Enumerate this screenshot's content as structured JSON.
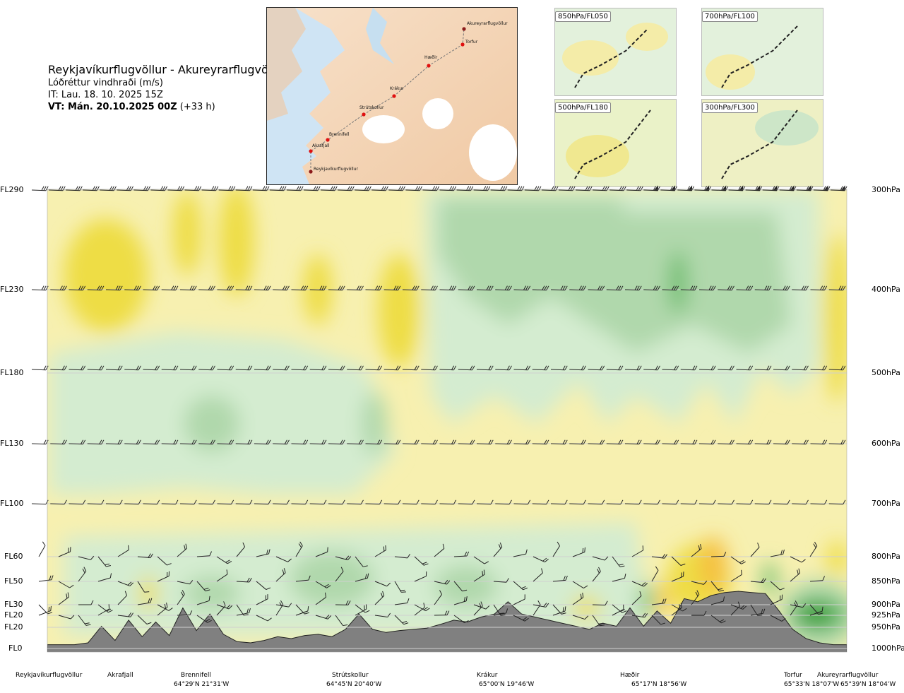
{
  "header": {
    "title": "Reykjavíkurflugvöllur - Akureyrarflugvöllur",
    "subtitle": "Lóðréttur vindhraði (m/s)",
    "it": "IT: Lau. 18. 10. 2025 15Z",
    "vt_bold": "VT: Mán. 20.10.2025 00Z",
    "vt_offset": "(+33 h)"
  },
  "map": {
    "places": [
      {
        "name": "Akureyrarflugvöllur"
      },
      {
        "name": "Torfur"
      },
      {
        "name": "Hæðir"
      },
      {
        "name": "Krákur"
      },
      {
        "name": "Strútskollur"
      },
      {
        "name": "Brennifell"
      },
      {
        "name": "Akrafjall"
      },
      {
        "name": "Reykjavíkurflugvöllur"
      }
    ]
  },
  "mini_maps": [
    {
      "label": "850hPa/FL050"
    },
    {
      "label": "700hPa/FL100"
    },
    {
      "label": "500hPa/FL180"
    },
    {
      "label": "300hPa/FL300"
    }
  ],
  "chart_data": {
    "type": "heatmap",
    "variable": "Lóðréttur vindhraði (m/s)",
    "flight_levels": [
      "FL290",
      "FL230",
      "FL180",
      "FL130",
      "FL100",
      "FL60",
      "FL50",
      "FL30",
      "FL20",
      "FL20",
      "FL0"
    ],
    "pressure_levels": [
      "300hPa",
      "400hPa",
      "500hPa",
      "600hPa",
      "700hPa",
      "800hPa",
      "850hPa",
      "900hPa",
      "925hPa",
      "950hPa",
      "1000hPa"
    ],
    "locations": [
      {
        "name": "Reykjavíkurflugvöllur",
        "coord": ""
      },
      {
        "name": "Akrafjall",
        "coord": ""
      },
      {
        "name": "Brennifell",
        "coord": "64°29'N 21°31'W"
      },
      {
        "name": "Strútskollur",
        "coord": "64°45'N 20°40'W"
      },
      {
        "name": "Krákur",
        "coord": "65°00'N 19°46'W"
      },
      {
        "name": "Hæðir",
        "coord": "65°17'N 18°56'W"
      },
      {
        "name": "Torfur",
        "coord": "65°33'N 18°07'W"
      },
      {
        "name": "Akureyrarflugvöllur",
        "coord": "65°39'N 18°04'W"
      }
    ],
    "terrain_profile": [
      0.05,
      0.05,
      0.05,
      0.08,
      0.35,
      0.12,
      0.45,
      0.18,
      0.42,
      0.2,
      0.65,
      0.28,
      0.55,
      0.22,
      0.1,
      0.08,
      0.12,
      0.18,
      0.15,
      0.2,
      0.22,
      0.18,
      0.3,
      0.55,
      0.3,
      0.25,
      0.28,
      0.3,
      0.32,
      0.38,
      0.45,
      0.42,
      0.5,
      0.55,
      0.75,
      0.55,
      0.5,
      0.45,
      0.4,
      0.35,
      0.3,
      0.4,
      0.35,
      0.65,
      0.35,
      0.6,
      0.4,
      0.8,
      0.75,
      0.85,
      0.9,
      0.92,
      0.9,
      0.88,
      0.6,
      0.3,
      0.15,
      0.08,
      0.05,
      0.05
    ],
    "colors": {
      "strong_up": "#f5c040",
      "up": "#eedd44",
      "weak_up": "#f7f0b0",
      "neutral": "#ffffff",
      "weak_down": "#d4ecd0",
      "down": "#b0d8ac",
      "strong_down": "#72bf72",
      "very_strong_down": "#2a9a2a",
      "terrain": "#808080"
    }
  }
}
